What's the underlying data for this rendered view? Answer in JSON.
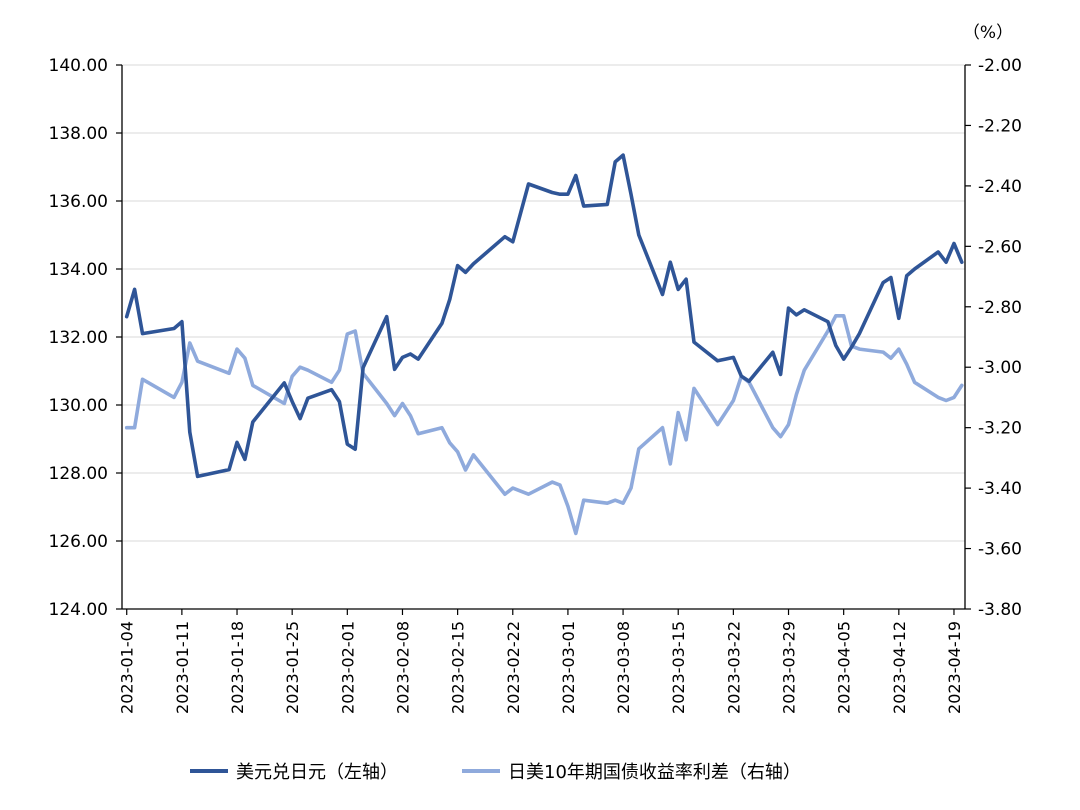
{
  "chart_data": {
    "type": "line",
    "title": "",
    "right_axis_unit": "（%）",
    "left_axis": {
      "ylim": [
        124,
        140
      ],
      "ticks": [
        "124.00",
        "126.00",
        "128.00",
        "130.00",
        "132.00",
        "134.00",
        "136.00",
        "138.00",
        "140.00"
      ]
    },
    "right_axis": {
      "ylim": [
        -3.8,
        -2.0
      ],
      "ticks": [
        "-3.80",
        "-3.60",
        "-3.40",
        "-3.20",
        "-3.00",
        "-2.80",
        "-2.60",
        "-2.40",
        "-2.20",
        "-2.00"
      ]
    },
    "x_ticks": [
      "2023-01-04",
      "2023-01-11",
      "2023-01-18",
      "2023-01-25",
      "2023-02-01",
      "2023-02-08",
      "2023-02-15",
      "2023-02-22",
      "2023-03-01",
      "2023-03-08",
      "2023-03-15",
      "2023-03-22",
      "2023-03-29",
      "2023-04-05",
      "2023-04-12",
      "2023-04-19"
    ],
    "grid": true,
    "legend_position": "bottom",
    "colors": {
      "usd_jpy": "#2f5597",
      "spread": "#8faadc",
      "grid": "#d9d9d9",
      "axis": "#000000"
    },
    "series": [
      {
        "name": "美元兑日元（左轴）",
        "axis": "left",
        "x": [
          "2023-01-04",
          "2023-01-05",
          "2023-01-06",
          "2023-01-10",
          "2023-01-11",
          "2023-01-12",
          "2023-01-13",
          "2023-01-17",
          "2023-01-18",
          "2023-01-19",
          "2023-01-20",
          "2023-01-24",
          "2023-01-25",
          "2023-01-26",
          "2023-01-27",
          "2023-01-30",
          "2023-01-31",
          "2023-02-01",
          "2023-02-02",
          "2023-02-03",
          "2023-02-06",
          "2023-02-07",
          "2023-02-08",
          "2023-02-09",
          "2023-02-10",
          "2023-02-13",
          "2023-02-14",
          "2023-02-15",
          "2023-02-16",
          "2023-02-17",
          "2023-02-21",
          "2023-02-22",
          "2023-02-24",
          "2023-02-27",
          "2023-02-28",
          "2023-03-01",
          "2023-03-02",
          "2023-03-03",
          "2023-03-06",
          "2023-03-07",
          "2023-03-08",
          "2023-03-09",
          "2023-03-10",
          "2023-03-13",
          "2023-03-14",
          "2023-03-15",
          "2023-03-16",
          "2023-03-17",
          "2023-03-20",
          "2023-03-21",
          "2023-03-22",
          "2023-03-23",
          "2023-03-24",
          "2023-03-27",
          "2023-03-28",
          "2023-03-29",
          "2023-03-30",
          "2023-03-31",
          "2023-04-03",
          "2023-04-04",
          "2023-04-05",
          "2023-04-06",
          "2023-04-07",
          "2023-04-10",
          "2023-04-11",
          "2023-04-12",
          "2023-04-13",
          "2023-04-14",
          "2023-04-17",
          "2023-04-18",
          "2023-04-19",
          "2023-04-20"
        ],
        "values": [
          132.6,
          133.4,
          132.1,
          132.25,
          132.45,
          129.2,
          127.9,
          128.1,
          128.9,
          128.4,
          129.5,
          130.65,
          130.1,
          129.6,
          130.2,
          130.45,
          130.1,
          128.85,
          128.7,
          131.1,
          132.6,
          131.05,
          131.4,
          131.5,
          131.35,
          132.4,
          133.1,
          134.1,
          133.9,
          134.15,
          134.95,
          134.8,
          136.5,
          136.25,
          136.2,
          136.2,
          136.75,
          135.85,
          135.9,
          137.15,
          137.35,
          136.2,
          135.0,
          133.25,
          134.2,
          133.4,
          133.7,
          131.85,
          131.3,
          131.35,
          131.4,
          130.85,
          130.7,
          131.55,
          130.9,
          132.85,
          132.65,
          132.8,
          132.45,
          131.75,
          131.35,
          131.7,
          132.1,
          133.6,
          133.75,
          132.55,
          133.8,
          134.0,
          134.5,
          134.2,
          134.75,
          134.2
        ]
      },
      {
        "name": "日美10年期国债收益率利差（右轴）",
        "axis": "right",
        "x": [
          "2023-01-04",
          "2023-01-05",
          "2023-01-06",
          "2023-01-10",
          "2023-01-11",
          "2023-01-12",
          "2023-01-13",
          "2023-01-17",
          "2023-01-18",
          "2023-01-19",
          "2023-01-20",
          "2023-01-24",
          "2023-01-25",
          "2023-01-26",
          "2023-01-27",
          "2023-01-30",
          "2023-01-31",
          "2023-02-01",
          "2023-02-02",
          "2023-02-03",
          "2023-02-06",
          "2023-02-07",
          "2023-02-08",
          "2023-02-09",
          "2023-02-10",
          "2023-02-13",
          "2023-02-14",
          "2023-02-15",
          "2023-02-16",
          "2023-02-17",
          "2023-02-21",
          "2023-02-22",
          "2023-02-24",
          "2023-02-27",
          "2023-02-28",
          "2023-03-01",
          "2023-03-02",
          "2023-03-03",
          "2023-03-06",
          "2023-03-07",
          "2023-03-08",
          "2023-03-09",
          "2023-03-10",
          "2023-03-13",
          "2023-03-14",
          "2023-03-15",
          "2023-03-16",
          "2023-03-17",
          "2023-03-20",
          "2023-03-21",
          "2023-03-22",
          "2023-03-23",
          "2023-03-24",
          "2023-03-27",
          "2023-03-28",
          "2023-03-29",
          "2023-03-30",
          "2023-03-31",
          "2023-04-03",
          "2023-04-04",
          "2023-04-05",
          "2023-04-06",
          "2023-04-07",
          "2023-04-10",
          "2023-04-11",
          "2023-04-12",
          "2023-04-13",
          "2023-04-14",
          "2023-04-17",
          "2023-04-18",
          "2023-04-19",
          "2023-04-20"
        ],
        "values": [
          -3.2,
          -3.2,
          -3.04,
          -3.1,
          -3.05,
          -2.92,
          -2.98,
          -3.02,
          -2.94,
          -2.97,
          -3.06,
          -3.12,
          -3.03,
          -3.0,
          -3.01,
          -3.05,
          -3.01,
          -2.89,
          -2.88,
          -3.02,
          -3.12,
          -3.16,
          -3.12,
          -3.16,
          -3.22,
          -3.2,
          -3.25,
          -3.28,
          -3.34,
          -3.29,
          -3.42,
          -3.4,
          -3.42,
          -3.38,
          -3.39,
          -3.46,
          -3.55,
          -3.44,
          -3.45,
          -3.44,
          -3.45,
          -3.4,
          -3.27,
          -3.2,
          -3.32,
          -3.15,
          -3.24,
          -3.07,
          -3.19,
          -3.15,
          -3.11,
          -3.03,
          -3.05,
          -3.2,
          -3.23,
          -3.19,
          -3.09,
          -3.01,
          -2.88,
          -2.83,
          -2.83,
          -2.93,
          -2.94,
          -2.95,
          -2.97,
          -2.94,
          -2.99,
          -3.05,
          -3.1,
          -3.11,
          -3.1,
          -3.06
        ]
      }
    ]
  }
}
